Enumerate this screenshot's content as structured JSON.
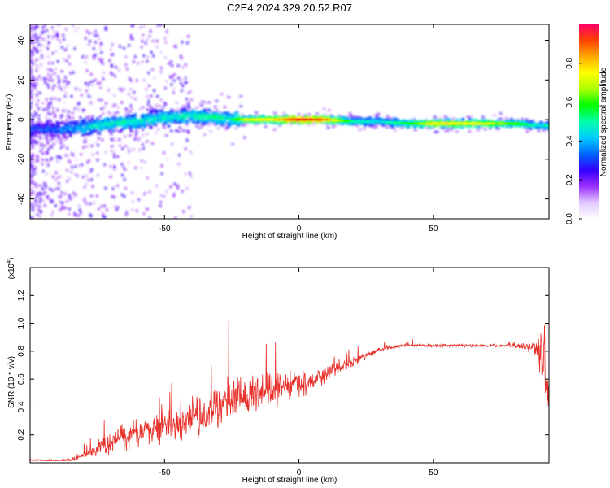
{
  "title": "C2E4.2024.329.20.52.R07",
  "chart_data": [
    {
      "type": "heatmap",
      "xlabel": "Height of straight line (km)",
      "ylabel": "Frequency (Hz)",
      "xlim": [
        -100,
        93
      ],
      "ylim": [
        -50,
        48
      ],
      "xticks": [
        -50,
        0,
        50
      ],
      "yticks": [
        -40,
        -20,
        0,
        20,
        40
      ],
      "colorbar": {
        "label": "Normalized spectral amplitude",
        "range": [
          0,
          1
        ],
        "ticks": [
          "0.0",
          "0.2",
          "0.4",
          "0.6",
          "0.8"
        ],
        "colors": [
          "#ffffff",
          "#e0c8ff",
          "#9b30ff",
          "#3300ff",
          "#0066ff",
          "#00ccff",
          "#00ffaa",
          "#00ff00",
          "#aaff00",
          "#ffff00",
          "#ffaa00",
          "#ff4400",
          "#ff0066"
        ]
      },
      "ridge": {
        "x": [
          -100,
          -90,
          -80,
          -70,
          -60,
          -50,
          -40,
          -30,
          -25,
          -20,
          -10,
          0,
          10,
          20,
          30,
          40,
          50,
          60,
          70,
          80,
          90,
          93
        ],
        "y": [
          -5,
          -5,
          -4,
          -2,
          -1,
          1,
          2,
          1,
          0,
          0,
          0,
          0,
          0,
          -1,
          -1,
          -2,
          -2,
          -2,
          -2,
          -2,
          -3,
          -3
        ],
        "amp": [
          0.3,
          0.35,
          0.45,
          0.5,
          0.5,
          0.5,
          0.5,
          0.55,
          0.5,
          0.7,
          0.75,
          0.95,
          0.85,
          0.5,
          0.45,
          0.55,
          0.75,
          0.75,
          0.7,
          0.6,
          0.45,
          0.5
        ]
      }
    },
    {
      "type": "line",
      "xlabel": "Height of straight line (km)",
      "ylabel": "SNR (10 * v/v)",
      "yscale_label": "(x10",
      "yscale_exp": "4",
      "yscale_close": ")",
      "xlim": [
        -100,
        93
      ],
      "ylim": [
        0,
        14000
      ],
      "xticks": [
        -50,
        0,
        50
      ],
      "yticks": [
        2000,
        4000,
        6000,
        8000,
        10000,
        12000
      ],
      "ytick_labels": [
        "0.2",
        "0.4",
        "0.6",
        "0.8",
        "1.0",
        "1.2"
      ],
      "color": "#e8302a",
      "x": [
        -100,
        -90,
        -85,
        -80,
        -75,
        -70,
        -65,
        -60,
        -55,
        -50,
        -45,
        -40,
        -35,
        -30,
        -25,
        -20,
        -15,
        -10,
        -5,
        0,
        5,
        10,
        15,
        20,
        25,
        30,
        35,
        40,
        45,
        50,
        55,
        60,
        65,
        70,
        75,
        80,
        85,
        88,
        90,
        91,
        92,
        93
      ],
      "y": [
        200,
        150,
        200,
        500,
        1000,
        1500,
        2000,
        2200,
        2400,
        2600,
        2900,
        3200,
        3600,
        4200,
        4400,
        4700,
        5000,
        5300,
        5500,
        5600,
        5800,
        6400,
        6800,
        7200,
        7700,
        8100,
        8300,
        8400,
        8400,
        8400,
        8400,
        8400,
        8400,
        8400,
        8400,
        8400,
        8300,
        8200,
        8000,
        7500,
        6000,
        5000
      ],
      "noise": [
        100,
        100,
        150,
        300,
        700,
        1100,
        1400,
        1500,
        1600,
        1700,
        1900,
        2000,
        2200,
        2300,
        2200,
        2200,
        2000,
        1800,
        1500,
        1300,
        1100,
        900,
        700,
        500,
        350,
        250,
        180,
        150,
        150,
        150,
        150,
        150,
        150,
        150,
        150,
        200,
        400,
        900,
        2500,
        3500,
        4500,
        4000
      ]
    }
  ]
}
